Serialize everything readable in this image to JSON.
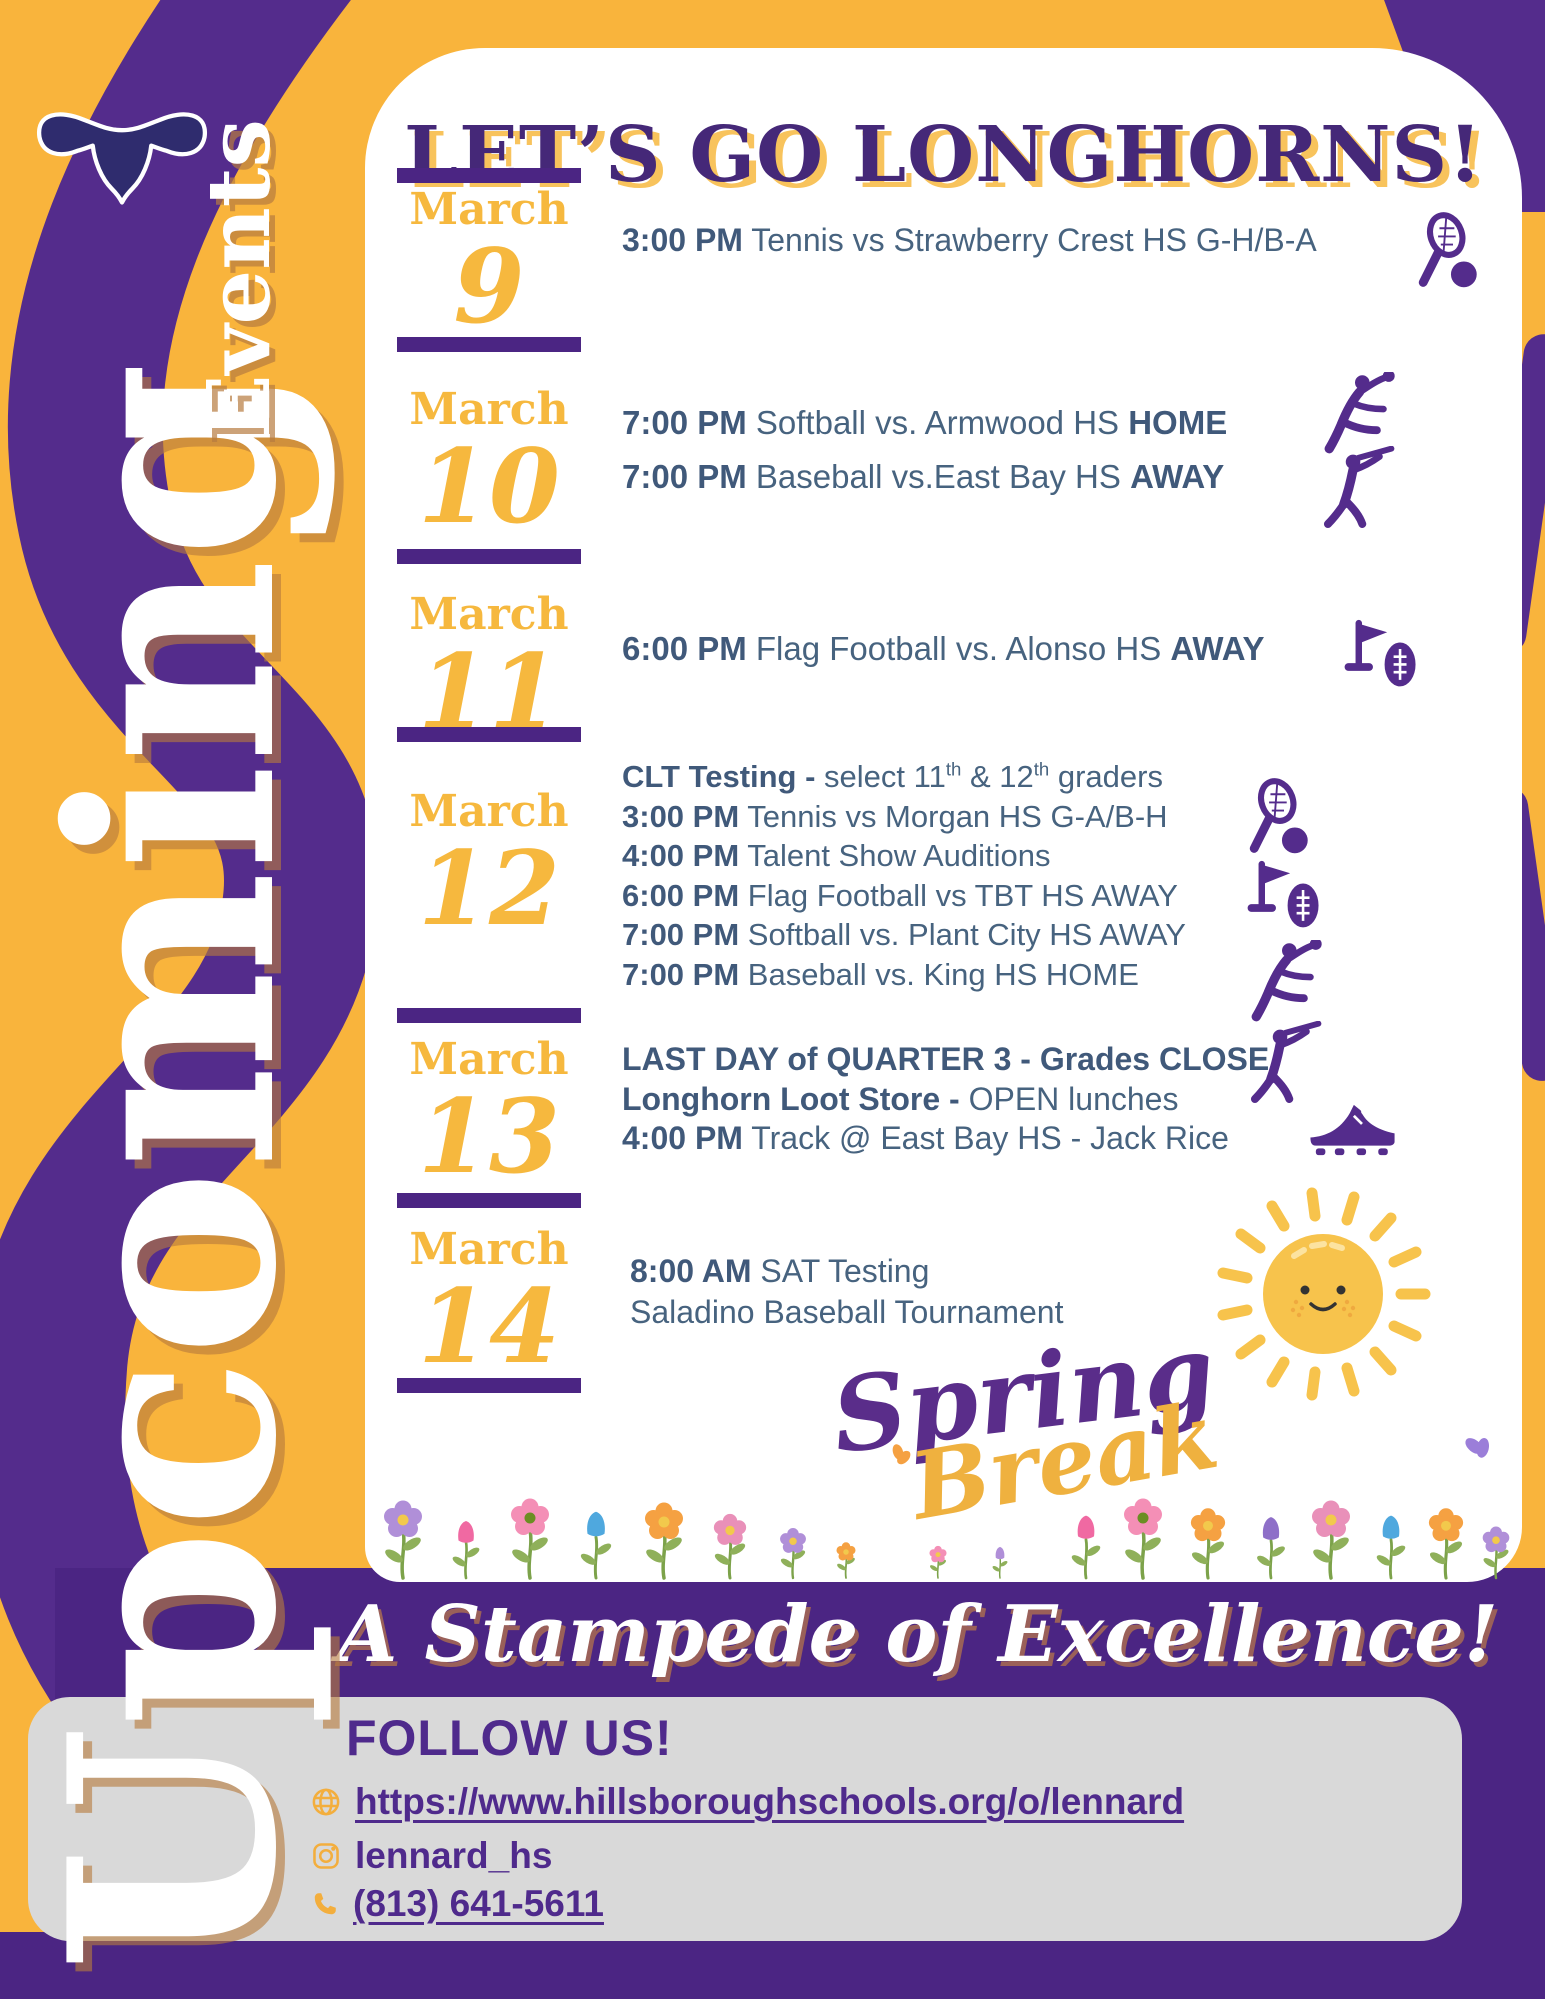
{
  "title": "LET’S GO LONGHORNS!",
  "side_text": {
    "large": "Upcoming",
    "small": "Events"
  },
  "events": [
    {
      "month": "March",
      "day": "9",
      "lines": [
        [
          {
            "t": "3:00 PM",
            "b": true
          },
          {
            "t": " Tennis vs Strawberry Crest HS G-H/B-A"
          }
        ]
      ],
      "icons": [
        "tennis-icon"
      ]
    },
    {
      "month": "March",
      "day": "10",
      "lines": [
        [
          {
            "t": "7:00 PM",
            "b": true
          },
          {
            "t": " Softball vs. Armwood HS "
          },
          {
            "t": "HOME",
            "b": true
          }
        ],
        [
          {
            "t": "7:00 PM",
            "b": true
          },
          {
            "t": " Baseball vs.East Bay HS "
          },
          {
            "t": "AWAY",
            "b": true
          }
        ]
      ],
      "icons": [
        "softball-player-icon",
        "baseball-batter-icon"
      ]
    },
    {
      "month": "March",
      "day": "11",
      "lines": [
        [
          {
            "t": "6:00 PM",
            "b": true
          },
          {
            "t": " Flag Football vs. Alonso HS "
          },
          {
            "t": "AWAY",
            "b": true
          }
        ]
      ],
      "icons": [
        "flag-football-icon"
      ]
    },
    {
      "month": "March",
      "day": "12",
      "lines": [
        [
          {
            "t": "CLT Testing -",
            "b": true
          },
          {
            "t": " select 11"
          },
          {
            "t": "th",
            "sup": true
          },
          {
            "t": " & 12"
          },
          {
            "t": "th",
            "sup": true
          },
          {
            "t": " graders"
          }
        ],
        [
          {
            "t": "3:00 PM",
            "b": true
          },
          {
            "t": " Tennis vs Morgan HS G-A/B-H"
          }
        ],
        [
          {
            "t": "4:00 PM",
            "b": true
          },
          {
            "t": " Talent Show Auditions"
          }
        ],
        [
          {
            "t": "6:00 PM",
            "b": true
          },
          {
            "t": " Flag Football vs TBT HS AWAY"
          }
        ],
        [
          {
            "t": "7:00 PM",
            "b": true
          },
          {
            "t": " Softball vs. Plant City HS AWAY"
          }
        ],
        [
          {
            "t": "7:00 PM",
            "b": true
          },
          {
            "t": " Baseball vs. King HS HOME"
          }
        ]
      ],
      "icons": [
        "tennis-icon",
        "flag-football-icon",
        "softball-player-icon",
        "baseball-batter-icon"
      ]
    },
    {
      "month": "March",
      "day": "13",
      "lines": [
        [
          {
            "t": "LAST DAY of QUARTER 3 - Grades CLOSE",
            "b": true
          }
        ],
        [
          {
            "t": "Longhorn Loot Store -",
            "b": true
          },
          {
            "t": " OPEN lunches"
          }
        ],
        [
          {
            "t": "4:00 PM",
            "b": true
          },
          {
            "t": " Track @ East Bay HS - Jack Rice"
          }
        ]
      ],
      "icons": [
        "track-shoe-icon"
      ]
    },
    {
      "month": "March",
      "day": "14",
      "lines": [
        [
          {
            "t": "8:00 AM",
            "b": true
          },
          {
            "t": " SAT Testing"
          }
        ],
        [
          {
            "t": "Saladino Baseball Tournament"
          }
        ]
      ],
      "icons": []
    }
  ],
  "spring_break": {
    "word1": "Spring",
    "word2": "Break"
  },
  "tagline": "A Stampede of Excellence!",
  "follow": {
    "heading": "FOLLOW US!",
    "website": "https://www.hillsboroughschools.org/o/lennard",
    "instagram": "lennard_hs",
    "phone": "(813) 641-5611"
  },
  "icon_names": [
    "longhorn-logo-icon",
    "tennis-icon",
    "softball-player-icon",
    "baseball-batter-icon",
    "flag-football-icon",
    "track-shoe-icon",
    "sun-illustration",
    "flower-border",
    "globe-icon",
    "instagram-icon",
    "phone-icon"
  ],
  "colors": {
    "background_yellow": "#F9B43C",
    "purple": "#4B2583",
    "ribbon_purple": "#542C8C",
    "event_text": "#47637F",
    "date_yellow": "#F6B83E",
    "panel_gray": "#D9D9D9",
    "icon_yellow": "#F3AE3D",
    "title_purple": "#452878"
  }
}
